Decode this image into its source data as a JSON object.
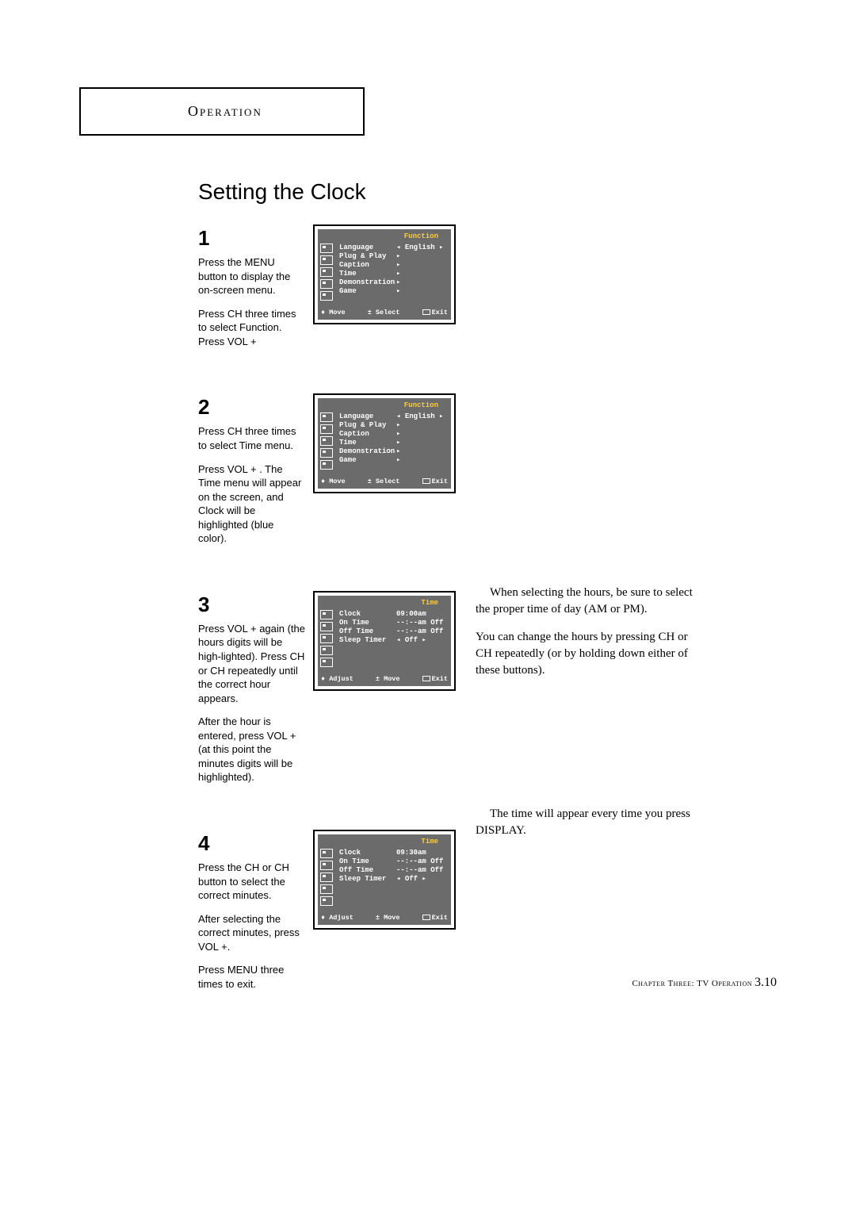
{
  "header": {
    "label": "Operation"
  },
  "title": "Setting the Clock",
  "steps": [
    {
      "num": "1",
      "paras": [
        "Press the MENU button to display the on-screen menu.",
        "Press CH   three times to select  Function. Press VOL +"
      ],
      "osd": {
        "title": "Function",
        "type": "function",
        "rows": [
          {
            "label": "Language",
            "val": "◂ English ▸"
          },
          {
            "label": "Plug & Play",
            "val": "▸"
          },
          {
            "label": "Caption",
            "val": "▸"
          },
          {
            "label": "Time",
            "val": "▸"
          },
          {
            "label": "Demonstration",
            "val": "▸"
          },
          {
            "label": "Game",
            "val": "▸"
          }
        ],
        "footer": [
          "♦ Move",
          "± Select",
          "Exit"
        ]
      }
    },
    {
      "num": "2",
      "paras": [
        "Press CH   three times to select Time menu.",
        "Press VOL + . The Time menu will appear on the screen, and  Clock  will be highlighted (blue color)."
      ],
      "osd": {
        "title": "Function",
        "type": "function",
        "rows": [
          {
            "label": "Language",
            "val": "◂ English ▸"
          },
          {
            "label": "Plug & Play",
            "val": "▸"
          },
          {
            "label": "Caption",
            "val": "▸"
          },
          {
            "label": "Time",
            "val": "▸"
          },
          {
            "label": "Demonstration",
            "val": "▸"
          },
          {
            "label": "Game",
            "val": "▸"
          }
        ],
        "footer": [
          "♦ Move",
          "± Select",
          "Exit"
        ]
      }
    },
    {
      "num": "3",
      "paras": [
        "Press VOL + again (the hours digits will be high-lighted). Press CH   or CH   repeatedly until the correct hour appears.",
        "After the hour is entered, press VOL + (at this point the minutes digits will be highlighted)."
      ],
      "osd": {
        "title": "Time",
        "type": "time",
        "rows": [
          {
            "label": "Clock",
            "val": "09:00am"
          },
          {
            "label": "On Time",
            "val": "--:--am Off"
          },
          {
            "label": "Off Time",
            "val": "--:--am Off"
          },
          {
            "label": "Sleep Timer",
            "val": "◂ Off ▸"
          }
        ],
        "footer": [
          "♦ Adjust",
          "± Move",
          "Exit"
        ]
      },
      "sidenote": [
        "When selecting the hours, be sure to select the proper time of day (AM or PM).",
        "You can change the hours by pressing CH    or CH    repeatedly (or by holding down either of these buttons)."
      ]
    },
    {
      "num": "4",
      "paras": [
        "Press the CH   or CH   button to select the correct minutes.",
        "After selecting the correct minutes, press VOL +.",
        "Press MENU three times to exit."
      ],
      "osd": {
        "title": "Time",
        "type": "time",
        "rows": [
          {
            "label": "Clock",
            "val": "09:30am"
          },
          {
            "label": "On Time",
            "val": "--:--am Off"
          },
          {
            "label": "Off Time",
            "val": "--:--am Off"
          },
          {
            "label": "Sleep Timer",
            "val": "◂ Off ▸"
          }
        ],
        "footer": [
          "♦ Adjust",
          "± Move",
          "Exit"
        ]
      },
      "sidenote": [
        "The time will appear every time you press DISPLAY."
      ]
    }
  ],
  "footer": {
    "chapter": "Chapter Three:  TV Operation",
    "page": "3.10"
  },
  "colors": {
    "osd_bg": "#6b6b6b",
    "osd_title": "#ffcc33",
    "osd_text": "#ffffff",
    "page_bg": "#ffffff",
    "text": "#000000"
  }
}
